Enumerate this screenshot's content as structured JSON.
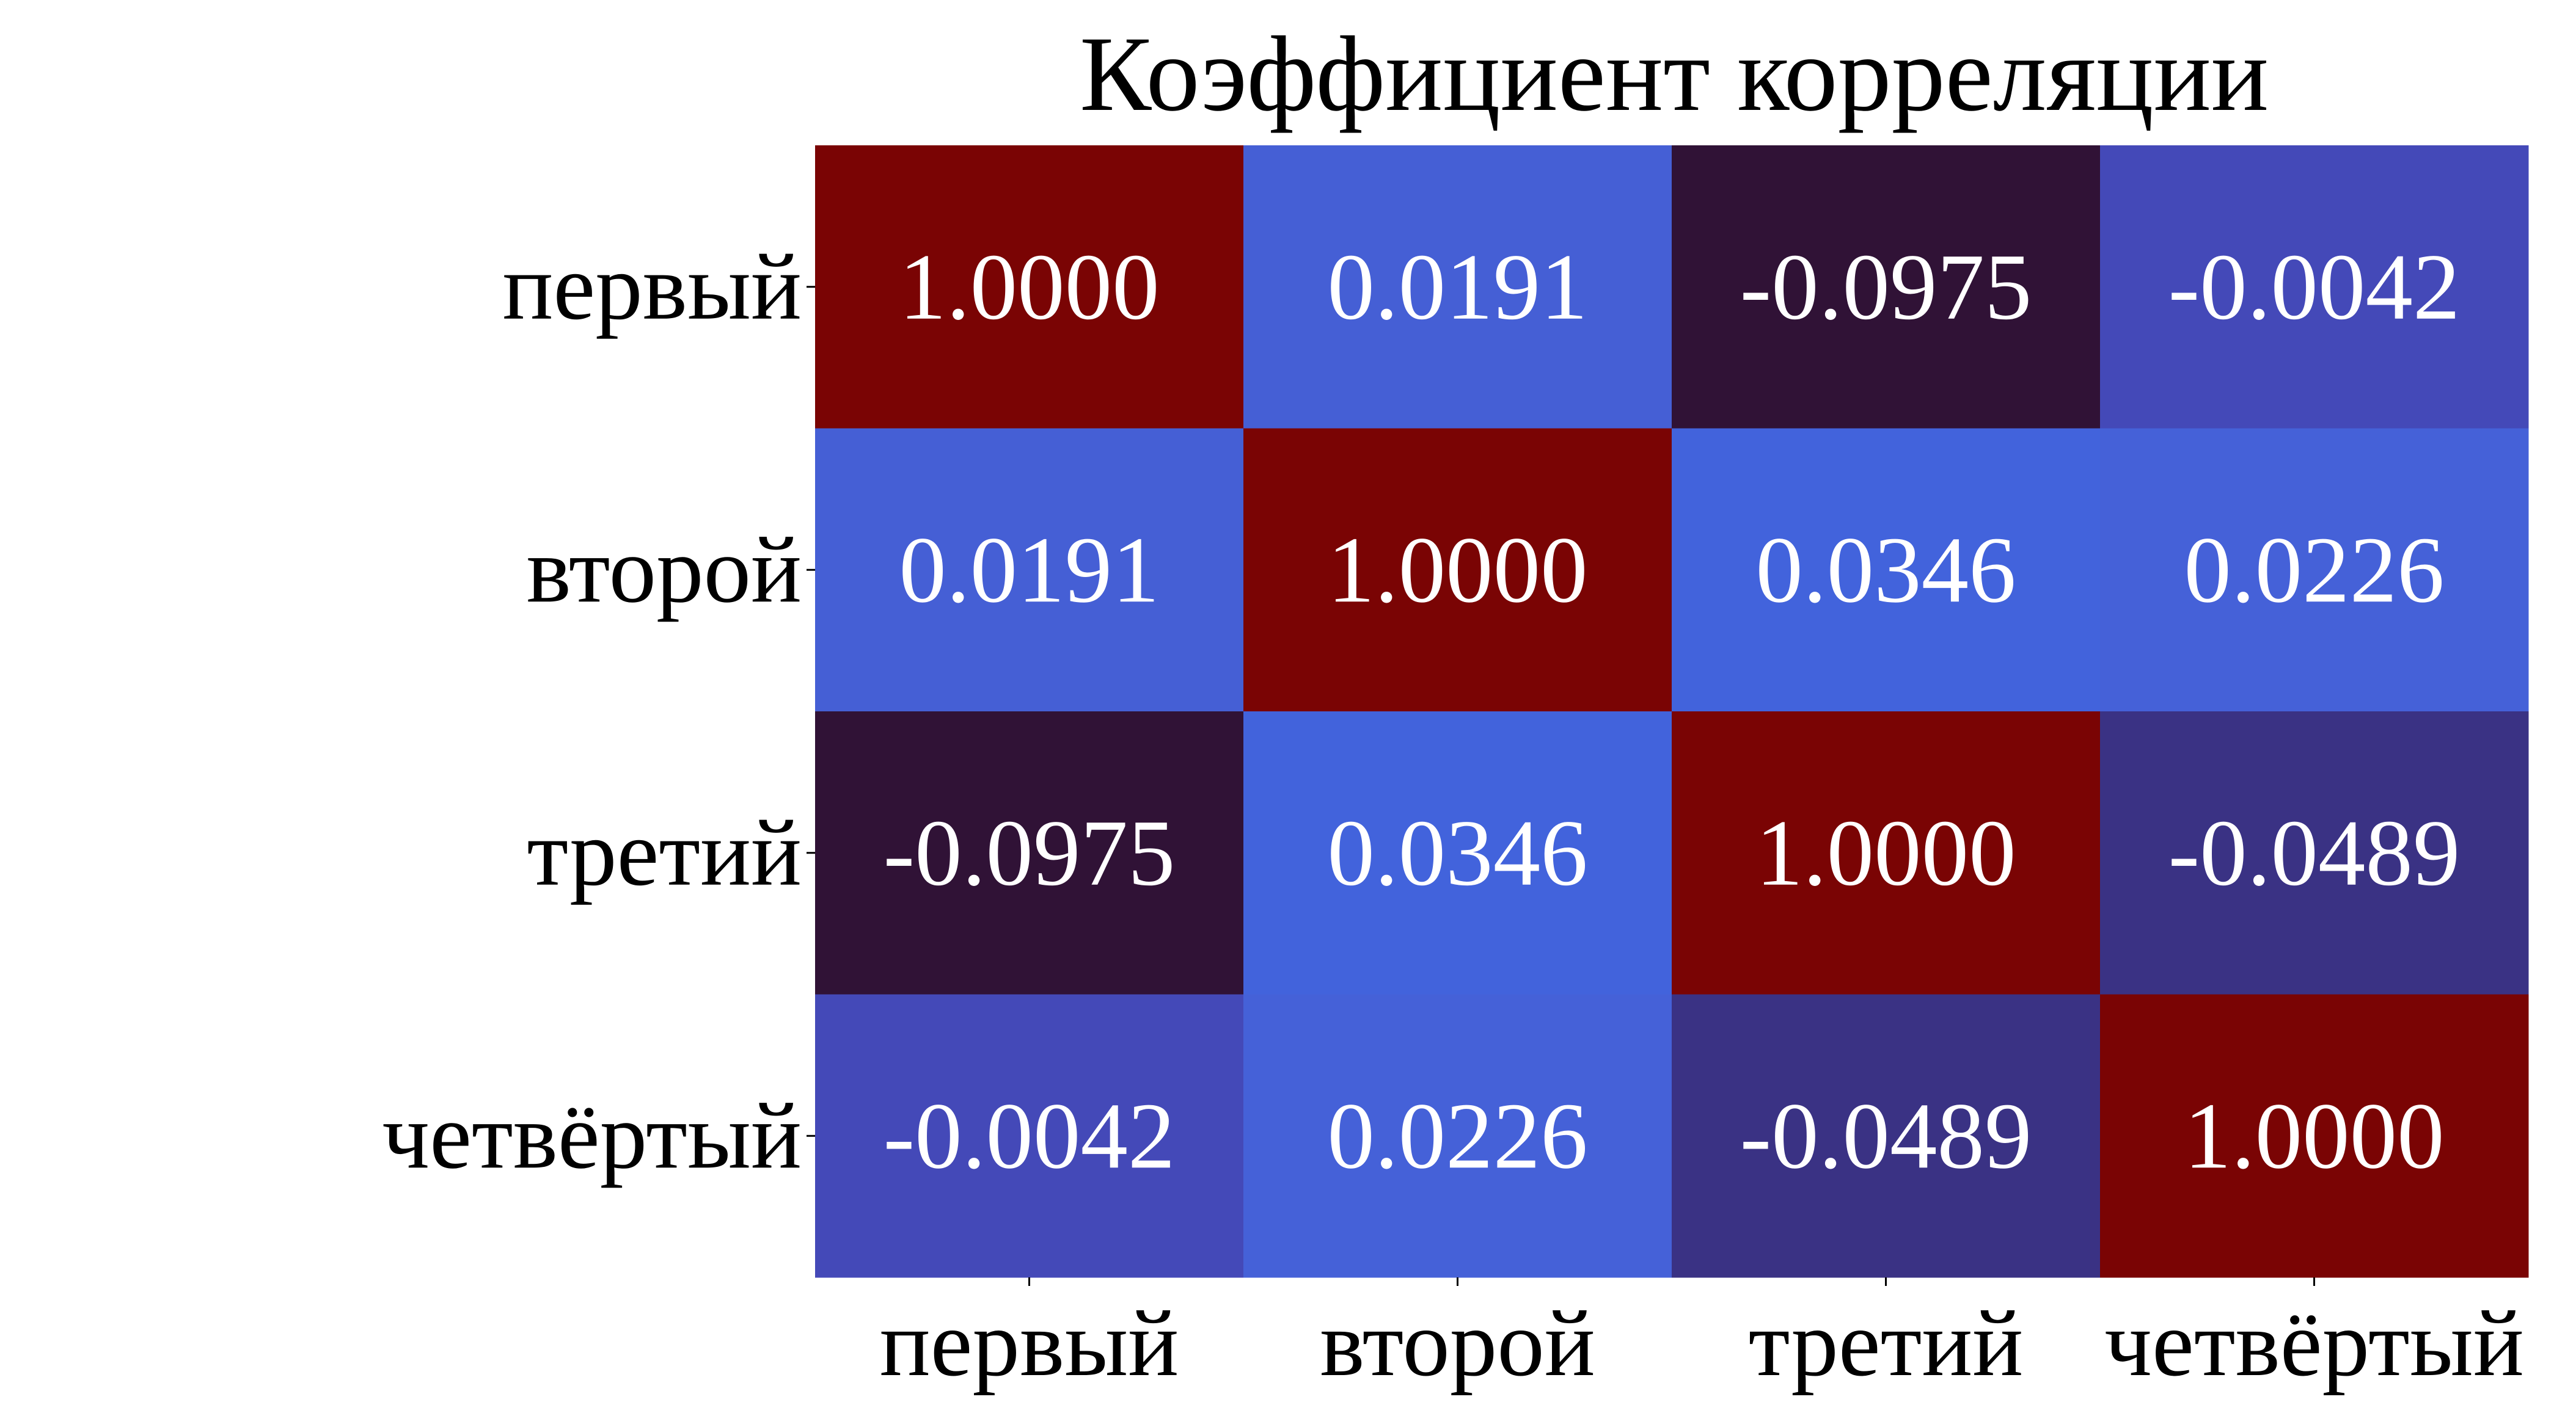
{
  "chart_data": {
    "type": "heatmap",
    "title": "Коэффициент корреляции",
    "x_labels": [
      "первый",
      "второй",
      "третий",
      "четвёртый"
    ],
    "y_labels": [
      "первый",
      "второй",
      "третий",
      "четвёртый"
    ],
    "values": [
      [
        1.0,
        0.0191,
        -0.0975,
        -0.0042
      ],
      [
        0.0191,
        1.0,
        0.0346,
        0.0226
      ],
      [
        -0.0975,
        0.0346,
        1.0,
        -0.0489
      ],
      [
        -0.0042,
        0.0226,
        -0.0489,
        1.0
      ]
    ],
    "value_labels": [
      [
        "1.0000",
        "0.0191",
        "-0.0975",
        "-0.0042"
      ],
      [
        "0.0191",
        "1.0000",
        "0.0346",
        "0.0226"
      ],
      [
        "-0.0975",
        "0.0346",
        "1.0000",
        "-0.0489"
      ],
      [
        "-0.0042",
        "0.0226",
        "-0.0489",
        "1.0000"
      ]
    ],
    "cell_colors": [
      [
        "#7a0404",
        "#455fd5",
        "#301236",
        "#4449b8"
      ],
      [
        "#455fd5",
        "#7a0404",
        "#4263dc",
        "#4561d8"
      ],
      [
        "#301236",
        "#4263dc",
        "#7a0404",
        "#3a3284"
      ],
      [
        "#4449b8",
        "#4561d8",
        "#3a3284",
        "#7a0404"
      ]
    ],
    "colorbar": false,
    "grid": false
  }
}
